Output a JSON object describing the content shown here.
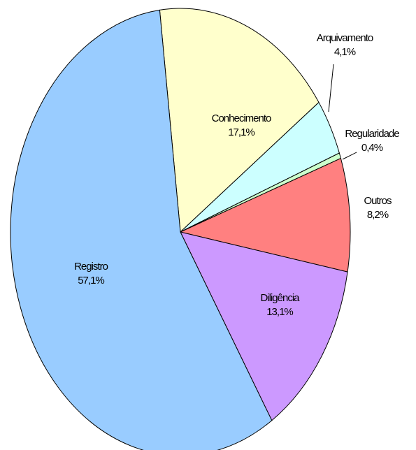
{
  "chart_data": {
    "type": "pie",
    "categories": [
      "Conhecimento",
      "Arquivamento",
      "Regularidade",
      "Outros",
      "Diligência",
      "Registro"
    ],
    "values": [
      17.1,
      4.1,
      0.4,
      8.2,
      13.1,
      57.1
    ],
    "value_labels": [
      "17,1%",
      "4,1%",
      "0,4%",
      "8,2%",
      "13,1%",
      "57,1%"
    ],
    "colors": [
      "#ffffcc",
      "#ccffff",
      "#ccffcc",
      "#ff8080",
      "#cc99ff",
      "#99ccff"
    ]
  }
}
